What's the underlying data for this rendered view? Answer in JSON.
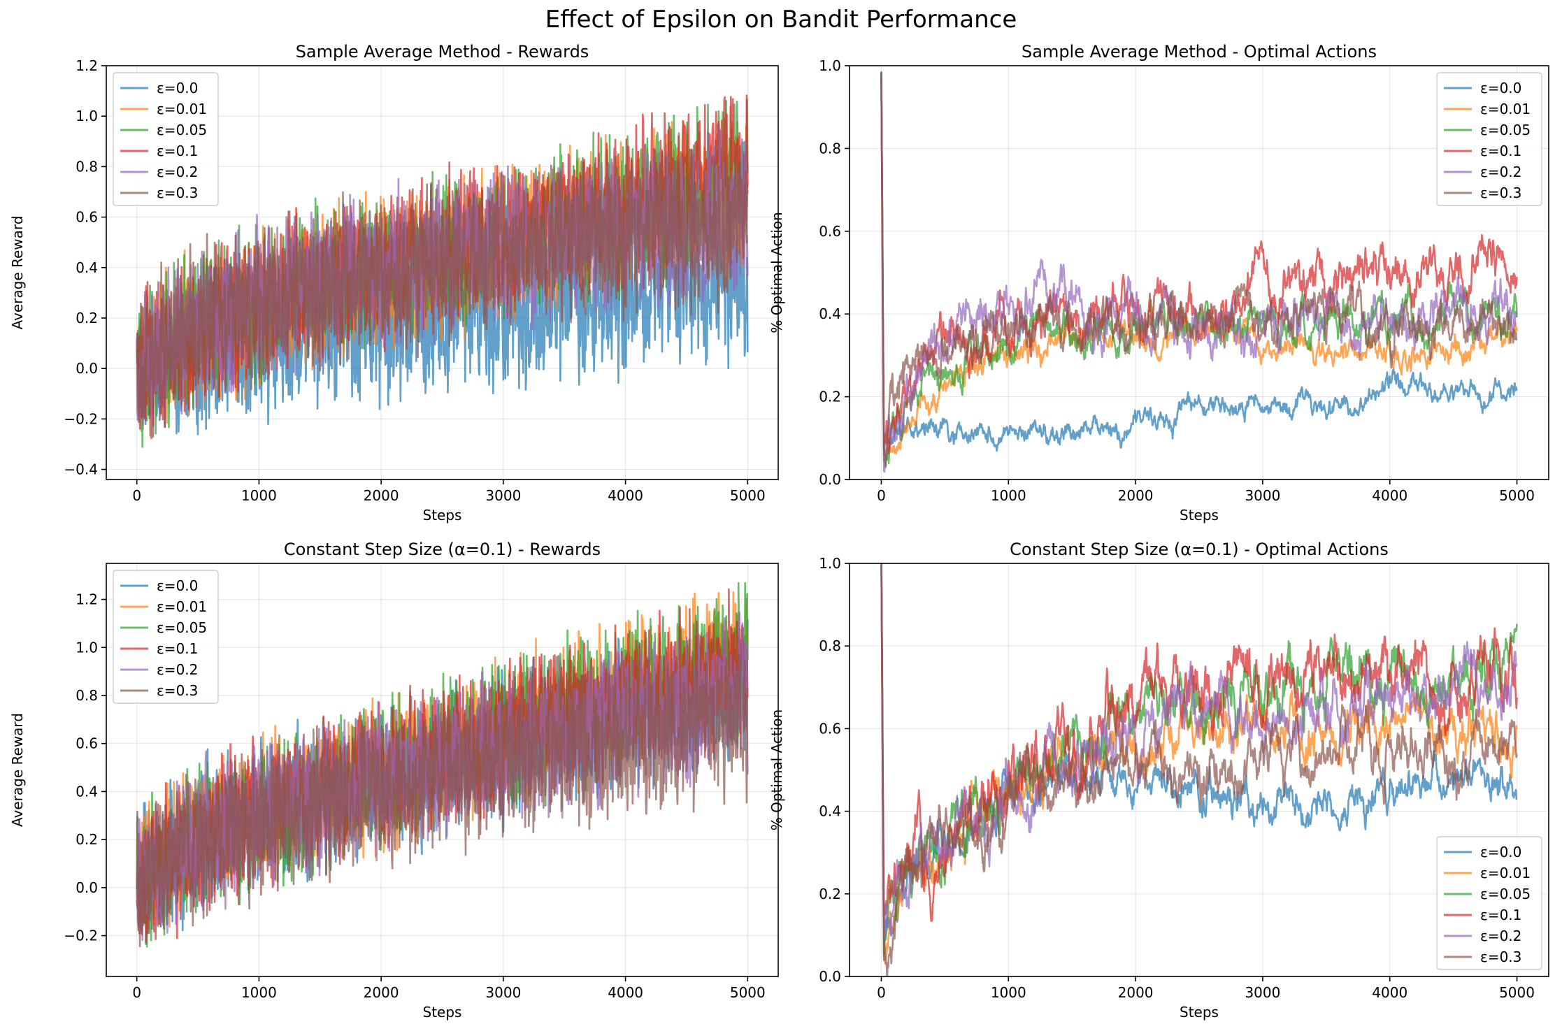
{
  "figure": {
    "title": "Effect of Epsilon on Bandit Performance",
    "colors": [
      "#1f77b4",
      "#ff7f0e",
      "#2ca02c",
      "#d62728",
      "#9467bd",
      "#8c564b"
    ],
    "legend_labels": [
      "ε=0.0",
      "ε=0.01",
      "ε=0.05",
      "ε=0.1",
      "ε=0.2",
      "ε=0.3"
    ]
  },
  "chart_data": [
    {
      "id": "rewards_sample_average",
      "type": "line",
      "title": "Sample Average Method - Rewards",
      "xlabel": "Steps",
      "ylabel": "Average Reward",
      "xlim": [
        -250,
        5250
      ],
      "ylim": [
        -0.44,
        1.2
      ],
      "xticks": [
        0,
        1000,
        2000,
        3000,
        4000,
        5000
      ],
      "yticks": [
        -0.4,
        -0.2,
        0.0,
        0.2,
        0.4,
        0.6,
        0.8,
        1.0,
        1.2
      ],
      "grid": true,
      "legend": "upper-left",
      "series": [
        {
          "name": "ε=0.0",
          "x": [
            0,
            500,
            1000,
            1500,
            2000,
            2500,
            3000,
            3500,
            4000,
            4500,
            5000
          ],
          "mean": [
            0.0,
            0.05,
            0.1,
            0.15,
            0.18,
            0.2,
            0.22,
            0.25,
            0.28,
            0.3,
            0.32
          ],
          "noise": 0.1
        },
        {
          "name": "ε=0.01",
          "x": [
            0,
            500,
            1000,
            1500,
            2000,
            2500,
            3000,
            3500,
            4000,
            4500,
            5000
          ],
          "mean": [
            0.0,
            0.15,
            0.25,
            0.32,
            0.38,
            0.44,
            0.5,
            0.56,
            0.6,
            0.66,
            0.72
          ],
          "noise": 0.1
        },
        {
          "name": "ε=0.05",
          "x": [
            0,
            500,
            1000,
            1500,
            2000,
            2500,
            3000,
            3500,
            4000,
            4500,
            5000
          ],
          "mean": [
            0.0,
            0.17,
            0.27,
            0.34,
            0.4,
            0.46,
            0.52,
            0.58,
            0.63,
            0.7,
            0.76
          ],
          "noise": 0.1
        },
        {
          "name": "ε=0.1",
          "x": [
            0,
            500,
            1000,
            1500,
            2000,
            2500,
            3000,
            3500,
            4000,
            4500,
            5000
          ],
          "mean": [
            0.0,
            0.17,
            0.27,
            0.34,
            0.41,
            0.47,
            0.53,
            0.59,
            0.65,
            0.72,
            0.8
          ],
          "noise": 0.1
        },
        {
          "name": "ε=0.2",
          "x": [
            0,
            500,
            1000,
            1500,
            2000,
            2500,
            3000,
            3500,
            4000,
            4500,
            5000
          ],
          "mean": [
            0.0,
            0.17,
            0.27,
            0.33,
            0.39,
            0.44,
            0.48,
            0.52,
            0.56,
            0.6,
            0.64
          ],
          "noise": 0.1
        },
        {
          "name": "ε=0.3",
          "x": [
            0,
            500,
            1000,
            1500,
            2000,
            2500,
            3000,
            3500,
            4000,
            4500,
            5000
          ],
          "mean": [
            0.0,
            0.17,
            0.26,
            0.32,
            0.37,
            0.41,
            0.45,
            0.48,
            0.52,
            0.55,
            0.58
          ],
          "noise": 0.1
        }
      ]
    },
    {
      "id": "optimal_sample_average",
      "type": "line",
      "title": "Sample Average Method - Optimal Actions",
      "xlabel": "Steps",
      "ylabel": "% Optimal Action",
      "xlim": [
        -250,
        5250
      ],
      "ylim": [
        0.0,
        1.0
      ],
      "xticks": [
        0,
        1000,
        2000,
        3000,
        4000,
        5000
      ],
      "yticks": [
        0.0,
        0.2,
        0.4,
        0.6,
        0.8,
        1.0
      ],
      "grid": true,
      "legend": "upper-right",
      "series": [
        {
          "name": "ε=0.0",
          "x": [
            0,
            20,
            200,
            400,
            700,
            1000,
            1500,
            2000,
            2500,
            3000,
            3500,
            4000,
            4500,
            5000
          ],
          "mean": [
            1.0,
            0.1,
            0.14,
            0.12,
            0.1,
            0.1,
            0.12,
            0.12,
            0.18,
            0.17,
            0.17,
            0.22,
            0.2,
            0.21
          ],
          "noise": 0.012
        },
        {
          "name": "ε=0.01",
          "x": [
            0,
            20,
            200,
            400,
            700,
            1000,
            1500,
            2000,
            2500,
            3000,
            3500,
            4000,
            4500,
            5000
          ],
          "mean": [
            1.0,
            0.08,
            0.16,
            0.21,
            0.26,
            0.3,
            0.33,
            0.36,
            0.35,
            0.33,
            0.31,
            0.3,
            0.32,
            0.34
          ],
          "noise": 0.015
        },
        {
          "name": "ε=0.05",
          "x": [
            0,
            20,
            200,
            400,
            700,
            1000,
            1500,
            2000,
            2500,
            3000,
            3500,
            4000,
            4500,
            5000
          ],
          "mean": [
            1.0,
            0.08,
            0.17,
            0.23,
            0.29,
            0.33,
            0.35,
            0.37,
            0.38,
            0.38,
            0.39,
            0.39,
            0.4,
            0.4
          ],
          "noise": 0.02
        },
        {
          "name": "ε=0.1",
          "x": [
            0,
            20,
            200,
            400,
            700,
            1000,
            1500,
            2000,
            2500,
            3000,
            3500,
            4000,
            4500,
            5000
          ],
          "mean": [
            1.0,
            0.08,
            0.22,
            0.28,
            0.33,
            0.37,
            0.39,
            0.4,
            0.41,
            0.43,
            0.47,
            0.52,
            0.5,
            0.56
          ],
          "noise": 0.025
        },
        {
          "name": "ε=0.2",
          "x": [
            0,
            20,
            200,
            400,
            700,
            1000,
            1500,
            2000,
            2500,
            3000,
            3500,
            4000,
            4500,
            5000
          ],
          "mean": [
            1.0,
            0.08,
            0.24,
            0.3,
            0.4,
            0.4,
            0.42,
            0.4,
            0.39,
            0.38,
            0.39,
            0.39,
            0.4,
            0.41
          ],
          "noise": 0.025
        },
        {
          "name": "ε=0.3",
          "x": [
            0,
            20,
            200,
            400,
            700,
            1000,
            1500,
            2000,
            2500,
            3000,
            3500,
            4000,
            4500,
            5000
          ],
          "mean": [
            1.0,
            0.08,
            0.26,
            0.31,
            0.35,
            0.37,
            0.38,
            0.39,
            0.4,
            0.39,
            0.4,
            0.39,
            0.38,
            0.37
          ],
          "noise": 0.025
        }
      ]
    },
    {
      "id": "rewards_constant_step",
      "type": "line",
      "title": "Constant Step Size (α=0.1) - Rewards",
      "xlabel": "Steps",
      "ylabel": "Average Reward",
      "xlim": [
        -250,
        5250
      ],
      "ylim": [
        -0.37,
        1.35
      ],
      "xticks": [
        0,
        1000,
        2000,
        3000,
        4000,
        5000
      ],
      "yticks": [
        -0.2,
        0.0,
        0.2,
        0.4,
        0.6,
        0.8,
        1.0,
        1.2
      ],
      "grid": true,
      "legend": "upper-left",
      "series": [
        {
          "name": "ε=0.0",
          "x": [
            0,
            500,
            1000,
            1500,
            2000,
            2500,
            3000,
            3500,
            4000,
            4500,
            5000
          ],
          "mean": [
            0.0,
            0.2,
            0.3,
            0.38,
            0.45,
            0.52,
            0.58,
            0.64,
            0.7,
            0.76,
            0.82
          ],
          "noise": 0.1
        },
        {
          "name": "ε=0.01",
          "x": [
            0,
            500,
            1000,
            1500,
            2000,
            2500,
            3000,
            3500,
            4000,
            4500,
            5000
          ],
          "mean": [
            0.0,
            0.22,
            0.32,
            0.4,
            0.48,
            0.56,
            0.64,
            0.72,
            0.8,
            0.88,
            0.96
          ],
          "noise": 0.1
        },
        {
          "name": "ε=0.05",
          "x": [
            0,
            500,
            1000,
            1500,
            2000,
            2500,
            3000,
            3500,
            4000,
            4500,
            5000
          ],
          "mean": [
            0.0,
            0.22,
            0.32,
            0.4,
            0.48,
            0.56,
            0.64,
            0.72,
            0.8,
            0.88,
            0.95
          ],
          "noise": 0.1
        },
        {
          "name": "ε=0.1",
          "x": [
            0,
            500,
            1000,
            1500,
            2000,
            2500,
            3000,
            3500,
            4000,
            4500,
            5000
          ],
          "mean": [
            0.0,
            0.21,
            0.31,
            0.39,
            0.47,
            0.55,
            0.62,
            0.7,
            0.77,
            0.84,
            0.9
          ],
          "noise": 0.1
        },
        {
          "name": "ε=0.2",
          "x": [
            0,
            500,
            1000,
            1500,
            2000,
            2500,
            3000,
            3500,
            4000,
            4500,
            5000
          ],
          "mean": [
            0.0,
            0.2,
            0.3,
            0.37,
            0.44,
            0.51,
            0.57,
            0.63,
            0.69,
            0.75,
            0.8
          ],
          "noise": 0.1
        },
        {
          "name": "ε=0.3",
          "x": [
            0,
            500,
            1000,
            1500,
            2000,
            2500,
            3000,
            3500,
            4000,
            4500,
            5000
          ],
          "mean": [
            0.0,
            0.19,
            0.28,
            0.35,
            0.41,
            0.47,
            0.52,
            0.57,
            0.62,
            0.66,
            0.7
          ],
          "noise": 0.1
        }
      ]
    },
    {
      "id": "optimal_constant_step",
      "type": "line",
      "title": "Constant Step Size (α=0.1) - Optimal Actions",
      "xlabel": "Steps",
      "ylabel": "% Optimal Action",
      "xlim": [
        -250,
        5250
      ],
      "ylim": [
        0.0,
        1.0
      ],
      "xticks": [
        0,
        1000,
        2000,
        3000,
        4000,
        5000
      ],
      "yticks": [
        0.0,
        0.2,
        0.4,
        0.6,
        0.8,
        1.0
      ],
      "grid": true,
      "legend": "lower-right",
      "series": [
        {
          "name": "ε=0.0",
          "x": [
            0,
            20,
            200,
            500,
            800,
            1000,
            1500,
            2000,
            2500,
            3000,
            3500,
            4000,
            4500,
            5000
          ],
          "mean": [
            1.0,
            0.08,
            0.2,
            0.32,
            0.4,
            0.45,
            0.5,
            0.48,
            0.45,
            0.42,
            0.41,
            0.44,
            0.47,
            0.46
          ],
          "noise": 0.02
        },
        {
          "name": "ε=0.01",
          "x": [
            0,
            20,
            200,
            500,
            800,
            1000,
            1500,
            2000,
            2500,
            3000,
            3500,
            4000,
            4500,
            5000
          ],
          "mean": [
            1.0,
            0.08,
            0.2,
            0.32,
            0.42,
            0.46,
            0.52,
            0.56,
            0.58,
            0.58,
            0.58,
            0.59,
            0.58,
            0.58
          ],
          "noise": 0.025
        },
        {
          "name": "ε=0.05",
          "x": [
            0,
            20,
            200,
            500,
            800,
            1000,
            1500,
            2000,
            2500,
            3000,
            3500,
            4000,
            4500,
            5000
          ],
          "mean": [
            1.0,
            0.08,
            0.22,
            0.35,
            0.44,
            0.48,
            0.56,
            0.62,
            0.66,
            0.69,
            0.71,
            0.72,
            0.74,
            0.76
          ],
          "noise": 0.03
        },
        {
          "name": "ε=0.1",
          "x": [
            0,
            20,
            200,
            500,
            800,
            1000,
            1500,
            2000,
            2500,
            3000,
            3500,
            4000,
            4500,
            5000
          ],
          "mean": [
            1.0,
            0.08,
            0.22,
            0.34,
            0.43,
            0.47,
            0.57,
            0.66,
            0.69,
            0.71,
            0.73,
            0.72,
            0.71,
            0.7
          ],
          "noise": 0.035
        },
        {
          "name": "ε=0.2",
          "x": [
            0,
            20,
            200,
            500,
            800,
            1000,
            1500,
            2000,
            2500,
            3000,
            3500,
            4000,
            4500,
            5000
          ],
          "mean": [
            1.0,
            0.08,
            0.21,
            0.33,
            0.42,
            0.46,
            0.53,
            0.6,
            0.64,
            0.65,
            0.66,
            0.67,
            0.67,
            0.68
          ],
          "noise": 0.03
        },
        {
          "name": "ε=0.3",
          "x": [
            0,
            20,
            200,
            500,
            800,
            1000,
            1500,
            2000,
            2500,
            3000,
            3500,
            4000,
            4500,
            5000
          ],
          "mean": [
            1.0,
            0.08,
            0.21,
            0.32,
            0.41,
            0.44,
            0.47,
            0.5,
            0.52,
            0.53,
            0.54,
            0.55,
            0.55,
            0.56
          ],
          "noise": 0.03
        }
      ]
    }
  ]
}
